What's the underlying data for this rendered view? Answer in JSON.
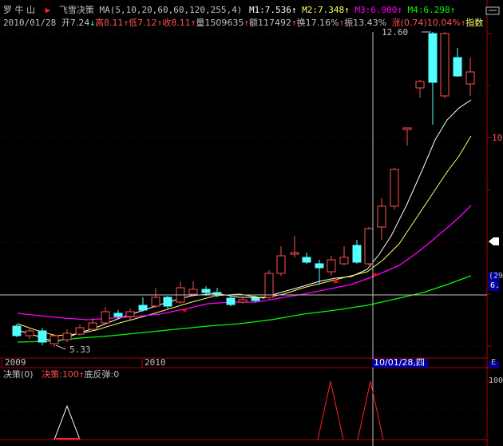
{
  "header": {
    "stock_name": "罗 牛 山",
    "flag_icon": "red-flag-icon",
    "indicator_name": "飞雪决策",
    "ma_params": "MA(5,10,20,60,60,120,255,4)",
    "m1_label": "M1:7.536",
    "m2_label": "M2:7.348",
    "m3_label": "M3:6.900",
    "m4_label": "M4:6.298",
    "up_arrow": "↑"
  },
  "quote": {
    "date": "2010/01/28",
    "open_label": "开7.24",
    "open_arrow": "↓",
    "high_label": "高8.11",
    "high_arrow": "↑",
    "low_label": "低7.12",
    "low_arrow": "↑",
    "close_label": "收8.11",
    "close_arrow": "↑",
    "volume_label": "量1509635",
    "volume_arrow": "↑",
    "amount_label": "额117492",
    "amount_arrow": "↑",
    "turnover_label": "换17.16%",
    "turnover_arrow": "↑",
    "amplitude_label": "振13.43%",
    "change_label": "涨(0.74)10.04%",
    "change_arrow": "↑",
    "index_label": "指数"
  },
  "price_labels": {
    "high_marker": "12.60",
    "low_marker": "5.33",
    "right_axis_10": "10",
    "right_badge_top": "(29",
    "right_badge_bottom": "6.",
    "right_axis_sub": "100"
  },
  "date_axis": {
    "label_2009": "2009",
    "label_2010": "2010",
    "cursor_date": "10/01/28,四",
    "corner_label": "E"
  },
  "sub_indicator": {
    "name": "决策(0)",
    "decision_label": "决策:100",
    "decision_arrow": "↑",
    "rebound_label": "底反弹:0"
  },
  "colors": {
    "background": "#000000",
    "up_candle": "#ff5050",
    "down_candle": "#54ffff",
    "ma1": "#ffffff",
    "ma2": "#ffff60",
    "ma3": "#ff00ff",
    "ma4": "#00ff00",
    "axis": "#b00000",
    "cursor": "#c0c0c0",
    "highlight_date_bg": "#0000a0"
  }
}
